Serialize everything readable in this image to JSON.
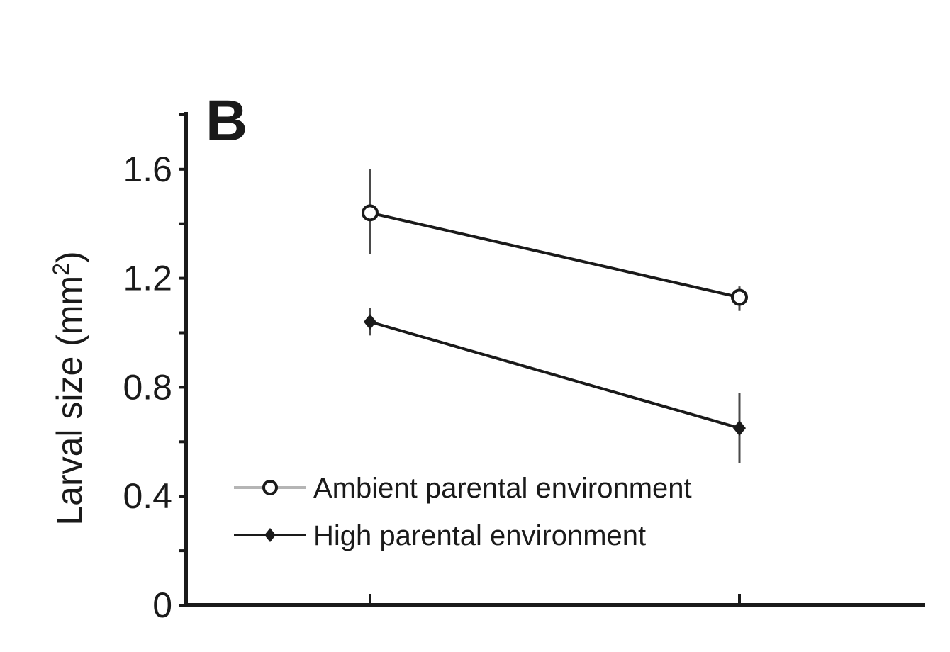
{
  "chart_data": {
    "type": "line",
    "panel_label": "B",
    "ylabel": {
      "text": "Larval size (mm",
      "superscript": "2",
      "suffix": ")"
    },
    "xlabel": "",
    "x_categories": [
      "",
      ""
    ],
    "ylim": [
      0,
      1.8
    ],
    "yticks": [
      0,
      0.4,
      0.8,
      1.2,
      1.6
    ],
    "ytick_labels": [
      "0",
      "0.4",
      "0.8",
      "1.2",
      "1.6"
    ],
    "grid": false,
    "legend_position": "bottom-left",
    "series": [
      {
        "name": "Ambient parental environment",
        "marker": "open-circle",
        "color": "#1a1a1a",
        "legend_line_color": "#b5b5b5",
        "values": [
          1.44,
          1.13
        ],
        "error_low": [
          1.29,
          1.08
        ],
        "error_high": [
          1.6,
          1.17
        ]
      },
      {
        "name": "High parental environment",
        "marker": "filled-diamond",
        "color": "#1a1a1a",
        "legend_line_color": "#1a1a1a",
        "values": [
          1.04,
          0.65
        ],
        "error_low": [
          0.99,
          0.52
        ],
        "error_high": [
          1.09,
          0.78
        ]
      }
    ]
  }
}
